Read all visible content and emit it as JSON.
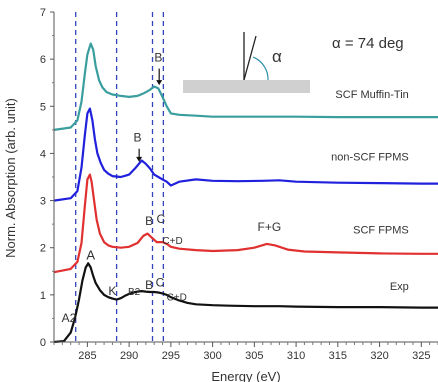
{
  "chart_data": {
    "type": "line",
    "xlabel": "Energy (eV)",
    "ylabel": "Norm. Absorption (arb. unit)",
    "xlim": [
      281,
      327
    ],
    "ylim": [
      0,
      7
    ],
    "x_ticks": [
      285,
      290,
      295,
      300,
      305,
      310,
      315,
      320,
      325
    ],
    "y_ticks": [
      0,
      1,
      2,
      3,
      4,
      5,
      6,
      7
    ],
    "grid": false,
    "angle_text": "α = 74 deg",
    "inset_symbol": "α",
    "dashed_lines_x": [
      283.6,
      288.5,
      292.8,
      294.1
    ],
    "series": [
      {
        "name": "Exp",
        "color": "#111111",
        "x": [
          281.0,
          282.2,
          283.0,
          283.5,
          284.0,
          284.4,
          284.8,
          285.1,
          285.4,
          285.7,
          286.0,
          286.5,
          287.0,
          287.5,
          288.0,
          288.5,
          289.0,
          289.5,
          290.0,
          290.5,
          291.0,
          291.5,
          292.0,
          292.5,
          293.0,
          293.5,
          294.0,
          294.5,
          295.0,
          296.0,
          297.0,
          298.0,
          300.0,
          302.0,
          305.0,
          308.0,
          310.0,
          315.0,
          320.0,
          325.0,
          327.0
        ],
        "y": [
          0.0,
          0.02,
          0.2,
          0.5,
          0.9,
          1.3,
          1.58,
          1.67,
          1.58,
          1.4,
          1.25,
          1.1,
          1.0,
          0.95,
          0.92,
          0.9,
          0.93,
          0.98,
          1.02,
          1.05,
          1.07,
          1.08,
          1.07,
          1.06,
          1.06,
          1.05,
          1.03,
          1.0,
          0.95,
          0.88,
          0.83,
          0.8,
          0.78,
          0.77,
          0.76,
          0.76,
          0.75,
          0.74,
          0.74,
          0.73,
          0.73
        ]
      },
      {
        "name": "SCF FPMS",
        "color": "#e03030",
        "x": [
          281.0,
          283.0,
          283.8,
          284.3,
          284.7,
          285.0,
          285.3,
          285.5,
          285.8,
          286.1,
          286.5,
          287.0,
          287.5,
          288.0,
          289.0,
          290.0,
          291.0,
          291.7,
          292.2,
          292.8,
          293.3,
          294.0,
          294.5,
          295.0,
          296.0,
          298.0,
          300.0,
          303.0,
          305.0,
          306.5,
          307.5,
          309.0,
          311.0,
          315.0,
          320.0,
          325.0,
          327.0
        ],
        "y": [
          1.48,
          1.55,
          1.7,
          2.1,
          2.9,
          3.45,
          3.55,
          3.4,
          3.0,
          2.6,
          2.3,
          2.12,
          2.05,
          2.02,
          2.0,
          2.02,
          2.1,
          2.25,
          2.3,
          2.2,
          2.12,
          2.12,
          2.08,
          2.02,
          1.98,
          1.95,
          1.93,
          1.95,
          2.0,
          2.08,
          2.05,
          1.96,
          1.92,
          1.9,
          1.88,
          1.87,
          1.87
        ]
      },
      {
        "name": "non-SCF FPMS",
        "color": "#2020dd",
        "x": [
          281.0,
          283.0,
          283.8,
          284.3,
          284.7,
          285.0,
          285.3,
          285.6,
          285.9,
          286.2,
          286.6,
          287.0,
          287.5,
          288.0,
          289.0,
          290.0,
          290.8,
          291.5,
          292.0,
          292.5,
          293.0,
          293.5,
          294.0,
          294.5,
          295.0,
          296.0,
          298.0,
          300.0,
          303.0,
          306.0,
          308.0,
          310.0,
          315.0,
          320.0,
          325.0,
          327.0
        ],
        "y": [
          3.0,
          3.05,
          3.2,
          3.7,
          4.4,
          4.85,
          4.95,
          4.7,
          4.3,
          4.0,
          3.8,
          3.65,
          3.57,
          3.52,
          3.5,
          3.55,
          3.7,
          3.85,
          3.78,
          3.68,
          3.55,
          3.5,
          3.45,
          3.4,
          3.32,
          3.4,
          3.45,
          3.42,
          3.41,
          3.42,
          3.43,
          3.4,
          3.38,
          3.37,
          3.36,
          3.36
        ]
      },
      {
        "name": "SCF Muffin-Tin",
        "color": "#3a9e9e",
        "x": [
          281.0,
          283.0,
          283.8,
          284.3,
          284.7,
          285.0,
          285.4,
          285.7,
          286.0,
          286.4,
          286.8,
          287.3,
          288.0,
          289.0,
          290.0,
          291.0,
          291.8,
          292.5,
          293.0,
          293.5,
          294.0,
          294.5,
          295.0,
          296.0,
          298.0,
          300.0,
          305.0,
          310.0,
          315.0,
          320.0,
          325.0,
          327.0
        ],
        "y": [
          4.5,
          4.55,
          4.7,
          5.1,
          5.7,
          6.1,
          6.33,
          6.2,
          5.85,
          5.55,
          5.4,
          5.3,
          5.25,
          5.22,
          5.2,
          5.22,
          5.28,
          5.35,
          5.42,
          5.38,
          5.2,
          5.0,
          4.85,
          4.82,
          4.8,
          4.78,
          4.78,
          4.78,
          4.77,
          4.77,
          4.77,
          4.77
        ]
      }
    ],
    "annotations": [
      {
        "text": "A",
        "x": 285.4,
        "y": 1.75,
        "size": 13
      },
      {
        "text": "A2",
        "x": 282.8,
        "y": 0.42,
        "size": 12
      },
      {
        "text": "K",
        "x": 288.0,
        "y": 1.0,
        "size": 12
      },
      {
        "text": "B2",
        "x": 290.6,
        "y": 1.0,
        "size": 10
      },
      {
        "text": "B",
        "x": 292.4,
        "y": 1.12,
        "size": 12
      },
      {
        "text": "C",
        "x": 293.7,
        "y": 1.18,
        "size": 12
      },
      {
        "text": "C+D",
        "x": 295.7,
        "y": 0.88,
        "size": 10
      },
      {
        "text": "B",
        "x": 292.4,
        "y": 2.48,
        "size": 12
      },
      {
        "text": "C",
        "x": 293.8,
        "y": 2.52,
        "size": 12
      },
      {
        "text": "C+D",
        "x": 295.2,
        "y": 2.08,
        "size": 10
      },
      {
        "text": "F+G",
        "x": 306.8,
        "y": 2.35,
        "size": 12
      },
      {
        "text": "B",
        "x": 291.0,
        "y": 4.25,
        "size": 12
      },
      {
        "text": "B",
        "x": 293.5,
        "y": 5.95,
        "size": 12
      },
      {
        "text": "SCF Muffin-Tin",
        "x": 323.5,
        "y": 5.18,
        "size": 11,
        "anchor": "end"
      },
      {
        "text": "non-SCF FPMS",
        "x": 323.5,
        "y": 3.85,
        "size": 11,
        "anchor": "end"
      },
      {
        "text": "SCF FPMS",
        "x": 323.5,
        "y": 2.3,
        "size": 11,
        "anchor": "end"
      },
      {
        "text": "Exp",
        "x": 323.5,
        "y": 1.1,
        "size": 11,
        "anchor": "end"
      }
    ],
    "arrows": [
      {
        "x": 291.2,
        "y_from": 4.1,
        "y_to": 3.82
      },
      {
        "x": 293.6,
        "y_from": 5.8,
        "y_to": 5.45
      }
    ]
  }
}
